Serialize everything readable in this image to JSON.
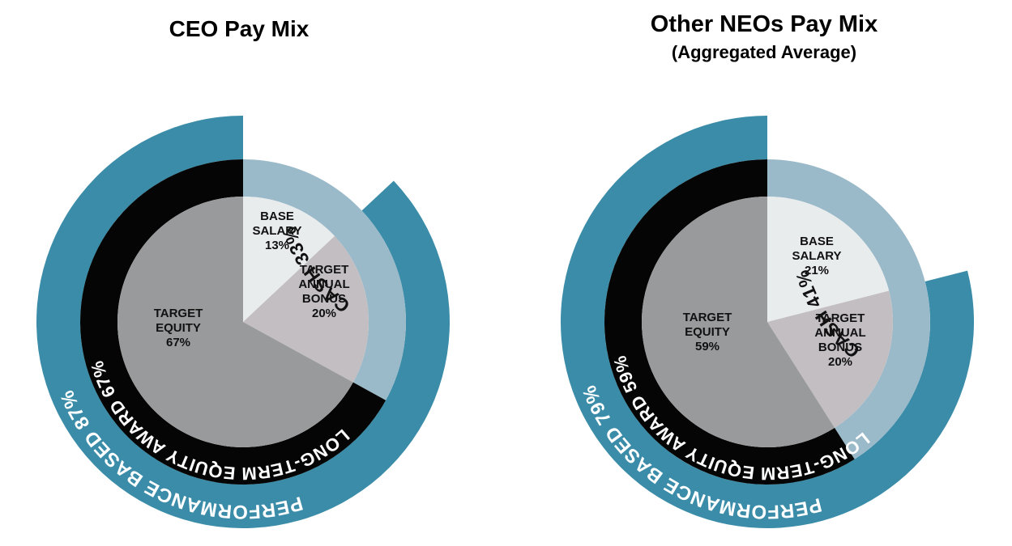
{
  "chart_data": [
    {
      "type": "pie",
      "title": "CEO Pay Mix",
      "subtitle": "",
      "slices": [
        {
          "label": [
            "BASE",
            "SALARY",
            "13%"
          ],
          "name": "Base Salary",
          "value": 13,
          "color": "#e9eced"
        },
        {
          "label": [
            "TARGET",
            "ANNUAL",
            "BONUS",
            "20%"
          ],
          "name": "Target Annual Bonus",
          "value": 20,
          "color": "#c2bec1"
        },
        {
          "label": [
            "TARGET",
            "EQUITY",
            "67%"
          ],
          "name": "Target Equity",
          "value": 67,
          "color": "#999a9b"
        }
      ],
      "middle_ring": [
        {
          "label": "CASH 33%",
          "name": "Cash",
          "value": 33,
          "color": "#9bbac9",
          "text_color": "#111111"
        },
        {
          "label": "LONG-TERM EQUITY AWARD 67%",
          "name": "Long-Term Equity Award",
          "value": 67,
          "color": "#050505",
          "text_color": "#ffffff"
        }
      ],
      "outer_ring": {
        "label": "PERFORMANCE BASED 87%",
        "name": "Performance Based",
        "value": 87,
        "color": "#3a8ca8",
        "text_color": "#ffffff"
      }
    },
    {
      "type": "pie",
      "title": "Other NEOs Pay Mix",
      "subtitle": "(Aggregated Average)",
      "slices": [
        {
          "label": [
            "BASE",
            "SALARY",
            "21%"
          ],
          "name": "Base Salary",
          "value": 21,
          "color": "#e9eced"
        },
        {
          "label": [
            "TARGET",
            "ANNUAL",
            "BONUS",
            "20%"
          ],
          "name": "Target Annual Bonus",
          "value": 20,
          "color": "#c2bec1"
        },
        {
          "label": [
            "TARGET",
            "EQUITY",
            "59%"
          ],
          "name": "Target Equity",
          "value": 59,
          "color": "#999a9b"
        }
      ],
      "middle_ring": [
        {
          "label": "CASH 41%",
          "name": "Cash",
          "value": 41,
          "color": "#9bbac9",
          "text_color": "#111111"
        },
        {
          "label": "LONG-TERM EQUITY AWARD 59%",
          "name": "Long-Term Equity Award",
          "value": 59,
          "color": "#050505",
          "text_color": "#ffffff"
        }
      ],
      "outer_ring": {
        "label": "PERFORMANCE BASED 79%",
        "name": "Performance Based",
        "value": 79,
        "color": "#3a8ca8",
        "text_color": "#ffffff"
      }
    }
  ]
}
